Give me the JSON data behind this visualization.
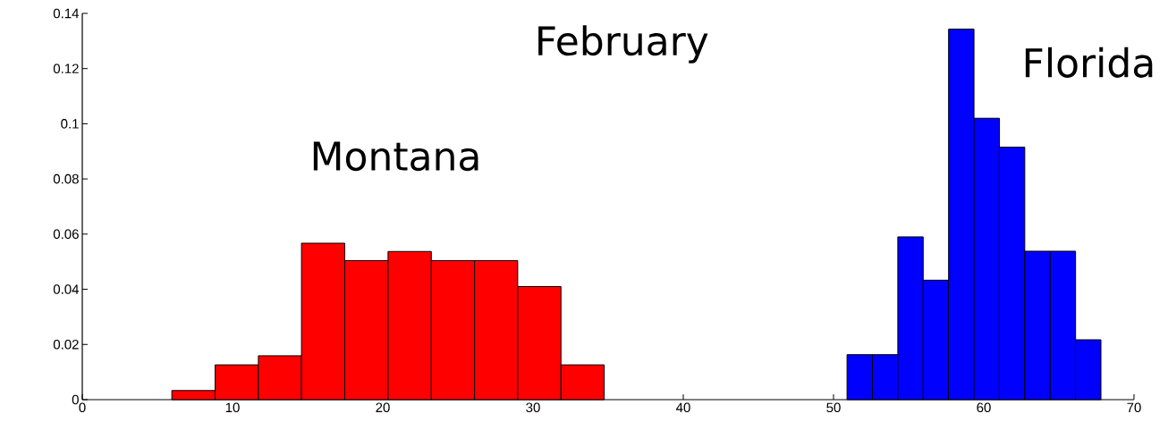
{
  "chart_data": {
    "type": "histogram",
    "title": "February",
    "xlim": [
      0,
      70
    ],
    "ylim": [
      0,
      0.14
    ],
    "xticks": [
      0,
      10,
      20,
      30,
      40,
      50,
      60,
      70
    ],
    "yticks": [
      0,
      0.02,
      0.04,
      0.06,
      0.08,
      0.1,
      0.12,
      0.14
    ],
    "bins": [
      5.96,
      8.84,
      11.72,
      14.59,
      17.47,
      20.35,
      23.23,
      26.11,
      28.98,
      31.86,
      34.74,
      50.9,
      52.59,
      54.28,
      55.97,
      57.66,
      59.35,
      61.04,
      62.73,
      64.42,
      66.11,
      67.8
    ],
    "values": [
      0.0033,
      0.0126,
      0.0159,
      0.0567,
      0.0504,
      0.0537,
      0.0504,
      0.0504,
      0.041,
      0.0126,
      null,
      0.0163,
      0.0163,
      0.059,
      0.0433,
      0.1343,
      0.102,
      0.0915,
      0.0538,
      0.0538,
      0.0217
    ],
    "colors": [
      "#ff0000",
      "#ff0000",
      "#ff0000",
      "#ff0000",
      "#ff0000",
      "#ff0000",
      "#ff0000",
      "#ff0000",
      "#ff0000",
      "#ff0000",
      null,
      "#0000ff",
      "#0000ff",
      "#0000ff",
      "#0000ff",
      "#0000ff",
      "#0000ff",
      "#0000ff",
      "#0000ff",
      "#0000ff",
      "#0000ff"
    ],
    "annotations": [
      "Montana",
      "Florida"
    ]
  }
}
